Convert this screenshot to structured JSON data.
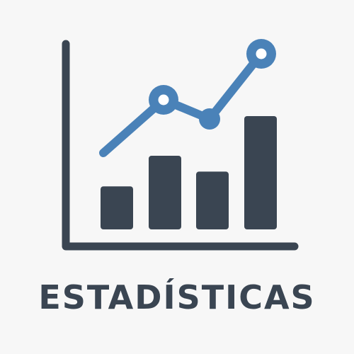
{
  "icon": {
    "name": "bar-line-chart-icon",
    "bars": [
      0.38,
      0.65,
      0.51,
      1.0
    ],
    "trend": [
      0.22,
      0.35,
      0.3,
      0.45
    ],
    "colors": {
      "bars": "#3a4552",
      "axes": "#3a4552",
      "trend": "#4a82b8",
      "dot_center": "#ffffff",
      "background": "#f7f7f7"
    }
  },
  "caption": {
    "text": "ESTADÍSTICAS"
  }
}
